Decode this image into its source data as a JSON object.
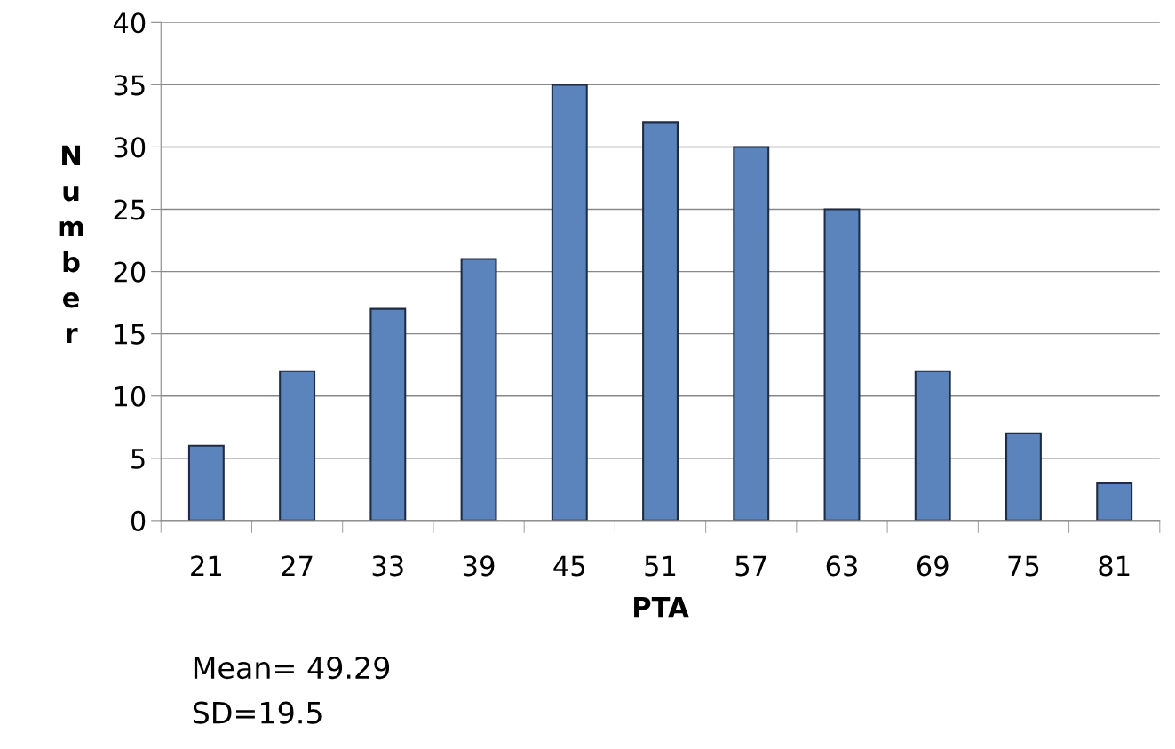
{
  "chart_data": {
    "type": "bar",
    "xlabel": "PTA",
    "ylabel": "Number",
    "categories": [
      "21",
      "27",
      "33",
      "39",
      "45",
      "51",
      "57",
      "63",
      "69",
      "75",
      "81"
    ],
    "values": [
      6,
      12,
      17,
      21,
      35,
      32,
      30,
      25,
      12,
      7,
      3
    ],
    "color": "#5b84bd",
    "ylim": [
      0,
      40
    ],
    "yticks": [
      0,
      5,
      10,
      15,
      20,
      25,
      30,
      35,
      40
    ],
    "grid": "y",
    "annotations": [
      "Mean= 49.29",
      "SD=19.5"
    ]
  }
}
